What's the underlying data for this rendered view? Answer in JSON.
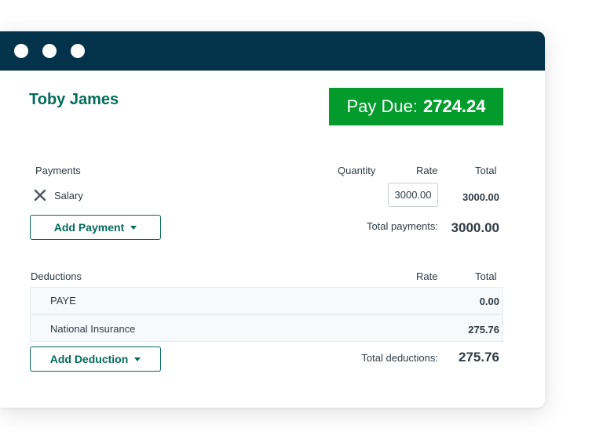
{
  "window": {
    "dots": [
      "",
      "",
      ""
    ]
  },
  "employee": {
    "name": "Toby James"
  },
  "pay_due": {
    "label": "Pay Due:",
    "amount": "2724.24"
  },
  "payments": {
    "headers": {
      "section": "Payments",
      "quantity": "Quantity",
      "rate": "Rate",
      "total": "Total"
    },
    "rows": [
      {
        "name": "Salary",
        "rate": "3000.00",
        "total": "3000.00",
        "remove_icon": "close-icon"
      }
    ],
    "add_label": "Add Payment",
    "total_label": "Total payments:",
    "total_value": "3000.00"
  },
  "deductions": {
    "headers": {
      "section": "Deductions",
      "rate": "Rate",
      "total": "Total"
    },
    "rows": [
      {
        "name": "PAYE",
        "total": "0.00"
      },
      {
        "name": "National Insurance",
        "total": "275.76"
      }
    ],
    "add_label": "Add Deduction",
    "total_label": "Total deductions:",
    "total_value": "275.76"
  },
  "colors": {
    "titlebar": "#03334a",
    "brand_green": "#036b5b",
    "pay_due_bg": "#049b2d"
  }
}
